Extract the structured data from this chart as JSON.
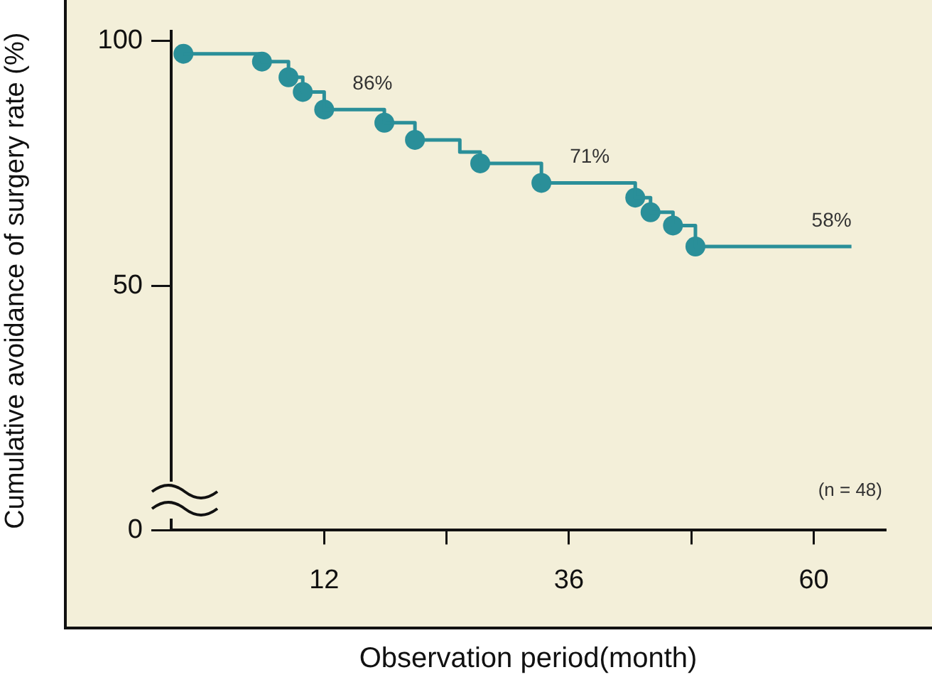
{
  "chart_data": {
    "type": "step",
    "xlabel": "Observation period(month)",
    "ylabel": "Cumulative avoidance of surgery rate (%)",
    "xlim": [
      -3,
      67
    ],
    "xticks": [
      {
        "value": 12,
        "label": "12"
      },
      {
        "value": 24,
        "label": null
      },
      {
        "value": 36,
        "label": "36"
      },
      {
        "value": 48,
        "label": null
      },
      {
        "value": 60,
        "label": "60"
      }
    ],
    "ylim": [
      0,
      102
    ],
    "yticks": [
      0,
      50,
      100
    ],
    "grid": false,
    "legend": false,
    "series": [
      {
        "color": "#2a8f99",
        "marker": "none",
        "x": [
          -1.8,
          5.9,
          8.5,
          9.9,
          12.0,
          17.9,
          20.9,
          25.3,
          27.3,
          33.3,
          42.5,
          44.0,
          46.2,
          48.4,
          63.7
        ],
        "values": [
          97.4,
          95.8,
          92.6,
          89.6,
          86,
          83.3,
          79.8,
          77.3,
          75.0,
          71,
          68.0,
          65.0,
          62.3,
          58,
          58
        ],
        "value_labels": [
          null,
          null,
          null,
          null,
          null,
          null,
          null,
          null,
          null,
          null,
          null,
          null,
          null,
          null,
          "58%"
        ]
      },
      {
        "type": "scatter",
        "color": "#2a8f99",
        "marker": "circle",
        "x": [
          -1.8,
          5.9,
          8.5,
          9.9,
          12.0,
          17.9,
          20.9,
          27.3,
          33.3,
          42.5,
          44.0,
          46.2,
          48.4
        ],
        "values": [
          97.4,
          95.8,
          92.6,
          89.6,
          86,
          83.3,
          79.8,
          75.0,
          71,
          68.0,
          65.0,
          62.3,
          58
        ],
        "value_labels": [
          null,
          null,
          null,
          null,
          "86%",
          null,
          null,
          null,
          "71%",
          null,
          null,
          null,
          null
        ]
      }
    ],
    "annotations": [
      "(n = 48)"
    ]
  }
}
